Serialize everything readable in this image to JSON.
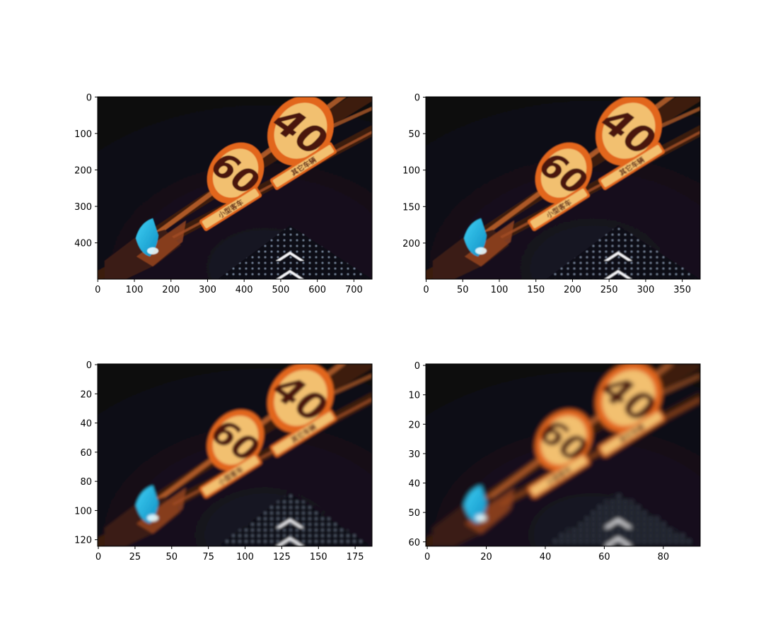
{
  "chart_data": [
    {
      "type": "image",
      "image_size": [
        750,
        500
      ],
      "xlim": [
        0,
        750
      ],
      "ylim": [
        500,
        0
      ],
      "x_ticks": [
        0,
        100,
        200,
        300,
        400,
        500,
        600,
        700
      ],
      "y_ticks": [
        0,
        100,
        200,
        300,
        400
      ],
      "sign_numbers": [
        "60",
        "40"
      ],
      "sign_captions": [
        "小型客车",
        "其它车辆"
      ],
      "blur": 0.6
    },
    {
      "type": "image",
      "image_size": [
        375,
        250
      ],
      "xlim": [
        0,
        375
      ],
      "ylim": [
        250,
        0
      ],
      "x_ticks": [
        0,
        50,
        100,
        150,
        200,
        250,
        300,
        350
      ],
      "y_ticks": [
        0,
        50,
        100,
        150,
        200
      ],
      "sign_numbers": [
        "60",
        "40"
      ],
      "sign_captions": [
        "小型客车",
        "其它车辆"
      ],
      "blur": 0.9
    },
    {
      "type": "image",
      "image_size": [
        187,
        125
      ],
      "xlim": [
        0,
        187
      ],
      "ylim": [
        125,
        0
      ],
      "x_ticks": [
        0,
        25,
        50,
        75,
        100,
        125,
        150,
        175
      ],
      "y_ticks": [
        0,
        20,
        40,
        60,
        80,
        100,
        120
      ],
      "sign_numbers": [
        "60",
        "40"
      ],
      "sign_captions": [
        "小型客车",
        "其它车辆"
      ],
      "blur": 1.8
    },
    {
      "type": "image",
      "image_size": [
        93,
        62
      ],
      "xlim": [
        0,
        93
      ],
      "ylim": [
        62,
        0
      ],
      "x_ticks": [
        0,
        20,
        40,
        60,
        80
      ],
      "y_ticks": [
        0,
        10,
        20,
        30,
        40,
        50,
        60
      ],
      "sign_numbers": [
        "60",
        "40"
      ],
      "sign_captions": [
        "小型客车",
        "其它车辆"
      ],
      "blur": 3.2
    }
  ]
}
